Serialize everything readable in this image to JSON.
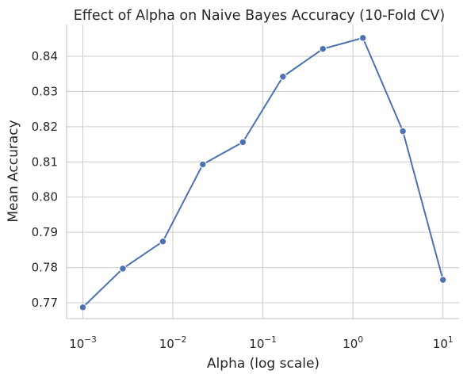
{
  "chart_data": {
    "type": "line",
    "title": "Effect of Alpha on Naive Bayes Accuracy (10-Fold CV)",
    "xlabel": "Alpha (log scale)",
    "ylabel": "Mean Accuracy",
    "x_scale": "log",
    "xlim": [
      0.00066,
      15.1
    ],
    "ylim": [
      0.7655,
      0.849
    ],
    "xticks": [
      {
        "value": 0.001,
        "base": "10",
        "exp": "−3"
      },
      {
        "value": 0.01,
        "base": "10",
        "exp": "−2"
      },
      {
        "value": 0.1,
        "base": "10",
        "exp": "−1"
      },
      {
        "value": 1,
        "base": "10",
        "exp": "0"
      },
      {
        "value": 10,
        "base": "10",
        "exp": "1"
      }
    ],
    "yticks": [
      "0.77",
      "0.78",
      "0.79",
      "0.80",
      "0.81",
      "0.82",
      "0.83",
      "0.84"
    ],
    "grid": true,
    "color": "#4c72b0",
    "x": [
      0.001,
      0.00278,
      0.00774,
      0.0215,
      0.0599,
      0.167,
      0.464,
      1.29,
      3.59,
      10
    ],
    "y": [
      0.7687,
      0.7797,
      0.7874,
      0.8093,
      0.8156,
      0.8342,
      0.8421,
      0.8452,
      0.8187,
      0.7765
    ]
  }
}
